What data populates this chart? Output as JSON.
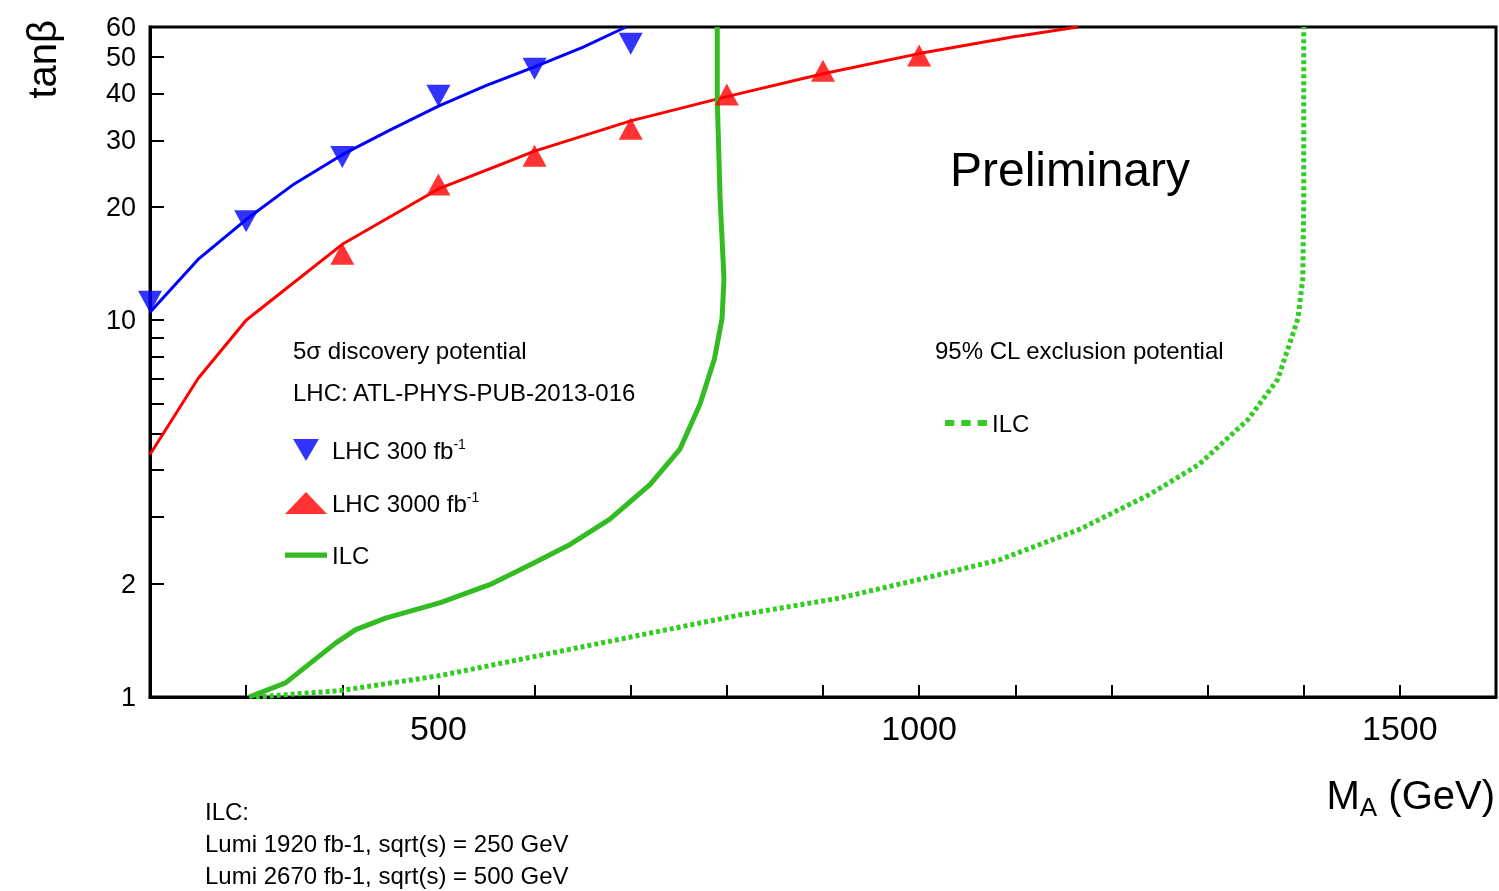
{
  "chart_data": {
    "type": "line",
    "xlabel": "M$_{A}$ (GeV)",
    "ylabel": "tanβ",
    "xlim": [
      200,
      1600
    ],
    "xticks": [
      {
        "value": 200,
        "label": null
      },
      {
        "value": 300,
        "label": null
      },
      {
        "value": 400,
        "label": null
      },
      500,
      {
        "value": 600,
        "label": null
      },
      {
        "value": 700,
        "label": null
      },
      {
        "value": 800,
        "label": null
      },
      {
        "value": 900,
        "label": null
      },
      1000,
      {
        "value": 1100,
        "label": null
      },
      {
        "value": 1200,
        "label": null
      },
      {
        "value": 1300,
        "label": null
      },
      {
        "value": 1400,
        "label": null
      },
      1500,
      {
        "value": 1600,
        "label": null
      }
    ],
    "ylim": [
      1,
      60
    ],
    "yticks": [
      1,
      2,
      {
        "value": 3,
        "label": null
      },
      {
        "value": 4,
        "label": null
      },
      {
        "value": 5,
        "label": null
      },
      {
        "value": 6,
        "label": null
      },
      {
        "value": 7,
        "label": null
      },
      {
        "value": 8,
        "label": null
      },
      {
        "value": 9,
        "label": null
      },
      10,
      20,
      30,
      40,
      50,
      60
    ],
    "log": "y",
    "grid": false,
    "legend": "left",
    "annotations": [
      "Preliminary",
      "5σ discovery potential",
      "LHC: ATL-PHYS-PUB-2013-016",
      "95% CL exclusion potential",
      "ILC:\nLumi 1920 fb-1, sqrt(s) = 250 GeV\nLumi 2670 fb-1, sqrt(s) = 500 GeV"
    ],
    "series": [
      {
        "color": "#0000ff",
        "line_style": "solid",
        "marker": "none",
        "x": [
          200,
          250,
          300,
          350,
          400,
          450,
          500,
          550,
          600,
          650,
          695
        ],
        "values": [
          10.5,
          14.5,
          18.5,
          23,
          27.5,
          32,
          37,
          42,
          47,
          53,
          60
        ]
      },
      {
        "color": "#ff0000",
        "line_style": "solid",
        "marker": "none",
        "x": [
          200,
          250,
          300,
          400,
          500,
          600,
          700,
          800,
          900,
          1000,
          1100,
          1165
        ],
        "values": [
          4.4,
          7,
          10,
          15.9,
          22.3,
          28.1,
          33.8,
          39.2,
          45.1,
          51,
          56.6,
          60
        ]
      },
      {
        "type": "scatter",
        "name": "LHC 300 fb$^{-1}$",
        "color": "#0000ff",
        "marker": "triangle-down",
        "x": [
          200,
          300,
          400,
          500,
          600,
          700
        ],
        "values": [
          11.2,
          18.3,
          27.1,
          39.4,
          46.5,
          54.2
        ]
      },
      {
        "type": "scatter",
        "name": "LHC 3000 fb$^{-1}$",
        "color": "#ff0000",
        "marker": "triangle",
        "x": [
          400,
          500,
          600,
          700,
          800,
          900,
          1000
        ],
        "values": [
          15,
          22.9,
          27.3,
          32.2,
          39.7,
          45.9,
          50.4
        ]
      },
      {
        "name": "ILC",
        "color": "#33bb22",
        "line_style": "solid",
        "marker": "none",
        "x": [
          303,
          341,
          393,
          414,
          445,
          502,
          554,
          595,
          637,
          678,
          720,
          751,
          772,
          787,
          795,
          797,
          793,
          790,
          790
        ],
        "values": [
          1,
          1.09,
          1.39,
          1.51,
          1.62,
          1.78,
          1.99,
          2.24,
          2.54,
          2.96,
          3.66,
          4.54,
          5.98,
          7.88,
          10.1,
          12.9,
          21,
          38.7,
          60
        ]
      },
      {
        "name": "ILC",
        "color": "#33cc22",
        "line_style": "dashed",
        "marker": "none",
        "x": [
          310,
          398,
          502,
          606,
          710,
          813,
          917,
          1000,
          1083,
          1166,
          1239,
          1291,
          1342,
          1373,
          1394,
          1399,
          1400,
          1400
        ],
        "values": [
          1,
          1.04,
          1.14,
          1.29,
          1.46,
          1.65,
          1.83,
          2.05,
          2.31,
          2.78,
          3.44,
          4.14,
          5.45,
          6.97,
          10.1,
          12.9,
          20,
          60
        ]
      }
    ]
  }
}
